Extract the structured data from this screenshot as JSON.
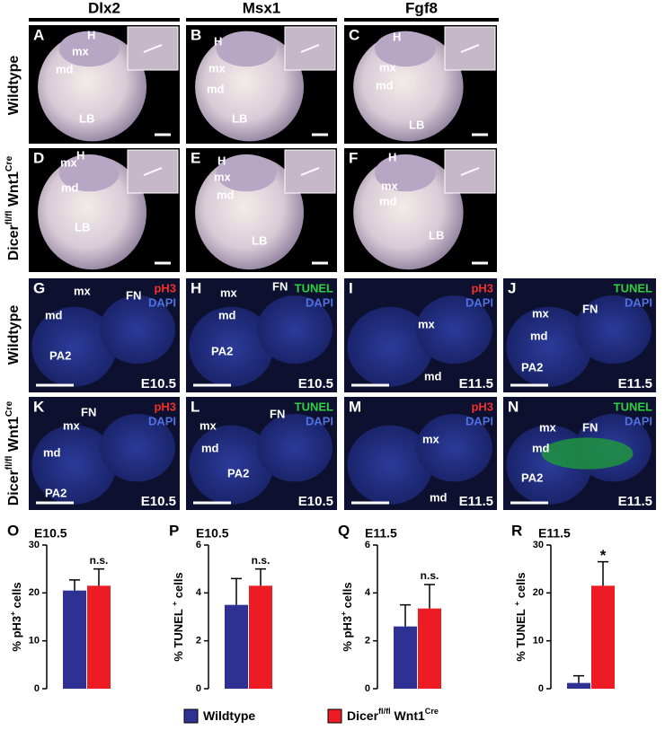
{
  "column_headers": [
    "Dlx2",
    "Msx1",
    "Fgf8"
  ],
  "row_labels": [
    {
      "parts": [
        {
          "text": "Wildtype"
        }
      ]
    },
    {
      "parts": [
        {
          "text": "Dicer"
        },
        {
          "text": "fl/fl",
          "sup": true
        },
        {
          "text": " Wnt1"
        },
        {
          "text": "Cre",
          "sup": true
        }
      ]
    },
    {
      "parts": [
        {
          "text": "Wildtype"
        }
      ]
    },
    {
      "parts": [
        {
          "text": "Dicer"
        },
        {
          "text": "fl/fl",
          "sup": true
        },
        {
          "text": " Wnt1"
        },
        {
          "text": "Cre",
          "sup": true
        }
      ]
    }
  ],
  "panels": [
    {
      "letter": "A",
      "labels": [
        "H",
        "mx",
        "md",
        "LB"
      ]
    },
    {
      "letter": "B",
      "labels": [
        "H",
        "mx",
        "md",
        "LB"
      ]
    },
    {
      "letter": "C",
      "labels": [
        "H",
        "mx",
        "md",
        "LB"
      ]
    },
    {
      "letter": "D",
      "labels": [
        "H",
        "mx",
        "md",
        "LB"
      ]
    },
    {
      "letter": "E",
      "labels": [
        "H",
        "mx",
        "md",
        "LB"
      ]
    },
    {
      "letter": "F",
      "labels": [
        "H",
        "mx",
        "md",
        "LB"
      ]
    },
    {
      "letter": "G",
      "labels": [
        "mx",
        "FN",
        "md",
        "PA2"
      ],
      "stain": [
        {
          "text": "pH3",
          "color": "#f0302a"
        },
        {
          "text": "DAPI",
          "color": "#4f72e0"
        }
      ],
      "stage": "E10.5"
    },
    {
      "letter": "H",
      "labels": [
        "mx",
        "FN",
        "md",
        "PA2"
      ],
      "stain": [
        {
          "text": "TUNEL",
          "color": "#2fd040"
        },
        {
          "text": "DAPI",
          "color": "#4f72e0"
        }
      ],
      "stage": "E10.5"
    },
    {
      "letter": "I",
      "labels": [
        "mx",
        "md"
      ],
      "stain": [
        {
          "text": "pH3",
          "color": "#f0302a"
        },
        {
          "text": "DAPI",
          "color": "#4f72e0"
        }
      ],
      "stage": "E11.5"
    },
    {
      "letter": "J",
      "labels": [
        "mx",
        "FN",
        "md",
        "PA2"
      ],
      "stain": [
        {
          "text": "TUNEL",
          "color": "#2fd040"
        },
        {
          "text": "DAPI",
          "color": "#4f72e0"
        }
      ],
      "stage": "E11.5"
    },
    {
      "letter": "K",
      "labels": [
        "mx",
        "FN",
        "md",
        "PA2"
      ],
      "stain": [
        {
          "text": "pH3",
          "color": "#f0302a"
        },
        {
          "text": "DAPI",
          "color": "#4f72e0"
        }
      ],
      "stage": "E10.5"
    },
    {
      "letter": "L",
      "labels": [
        "mx",
        "FN",
        "md",
        "PA2"
      ],
      "stain": [
        {
          "text": "TUNEL",
          "color": "#2fd040"
        },
        {
          "text": "DAPI",
          "color": "#4f72e0"
        }
      ],
      "stage": "E10.5"
    },
    {
      "letter": "M",
      "labels": [
        "mx",
        "md"
      ],
      "stain": [
        {
          "text": "pH3",
          "color": "#f0302a"
        },
        {
          "text": "DAPI",
          "color": "#4f72e0"
        }
      ],
      "stage": "E11.5"
    },
    {
      "letter": "N",
      "labels": [
        "mx",
        "FN",
        "md",
        "PA2"
      ],
      "stain": [
        {
          "text": "TUNEL",
          "color": "#2fd040"
        },
        {
          "text": "DAPI",
          "color": "#4f72e0"
        }
      ],
      "stage": "E11.5"
    }
  ],
  "chart_data": [
    {
      "type": "bar",
      "title": "O",
      "subtitle": "E10.5",
      "ylabel": [
        {
          "text": "% pH3"
        },
        {
          "text": "+",
          "sup": true
        },
        {
          "text": " cells"
        }
      ],
      "ylim": [
        0,
        30
      ],
      "yticks": [
        0,
        10,
        20,
        30
      ],
      "series": [
        {
          "color": "#2e3192",
          "values": [
            20.5
          ],
          "errors": [
            2.2
          ]
        },
        {
          "color": "#ed1c24",
          "values": [
            21.5
          ],
          "errors": [
            3.5
          ]
        }
      ],
      "annotation": "n.s."
    },
    {
      "type": "bar",
      "title": "P",
      "subtitle": "E10.5",
      "ylabel": [
        {
          "text": "% TUNEL "
        },
        {
          "text": "+",
          "sup": true
        },
        {
          "text": " cells"
        }
      ],
      "ylim": [
        0,
        6
      ],
      "yticks": [
        0,
        2,
        4,
        6
      ],
      "series": [
        {
          "color": "#2e3192",
          "values": [
            3.5
          ],
          "errors": [
            1.1
          ]
        },
        {
          "color": "#ed1c24",
          "values": [
            4.3
          ],
          "errors": [
            0.7
          ]
        }
      ],
      "annotation": "n.s."
    },
    {
      "type": "bar",
      "title": "Q",
      "subtitle": "E11.5",
      "ylabel": [
        {
          "text": "% pH3"
        },
        {
          "text": "+",
          "sup": true
        },
        {
          "text": " cells"
        }
      ],
      "ylim": [
        0,
        6
      ],
      "yticks": [
        0,
        2,
        4,
        6
      ],
      "series": [
        {
          "color": "#2e3192",
          "values": [
            2.6
          ],
          "errors": [
            0.9
          ]
        },
        {
          "color": "#ed1c24",
          "values": [
            3.35
          ],
          "errors": [
            1.0
          ]
        }
      ],
      "annotation": "n.s."
    },
    {
      "type": "bar",
      "title": "R",
      "subtitle": "E11.5",
      "ylabel": [
        {
          "text": "% TUNEL "
        },
        {
          "text": "+",
          "sup": true
        },
        {
          "text": " cells"
        }
      ],
      "ylim": [
        0,
        30
      ],
      "yticks": [
        0,
        10,
        20,
        30
      ],
      "series": [
        {
          "color": "#2e3192",
          "values": [
            1.2
          ],
          "errors": [
            1.5
          ]
        },
        {
          "color": "#ed1c24",
          "values": [
            21.5
          ],
          "errors": [
            5
          ]
        }
      ],
      "annotation": "*"
    }
  ],
  "legend": [
    {
      "color": "#2e3192",
      "parts": [
        {
          "text": "Wildtype"
        }
      ]
    },
    {
      "color": "#ed1c24",
      "parts": [
        {
          "text": "Dicer"
        },
        {
          "text": "fl/fl",
          "sup": true
        },
        {
          "text": " Wnt1"
        },
        {
          "text": "Cre",
          "sup": true
        }
      ]
    }
  ]
}
